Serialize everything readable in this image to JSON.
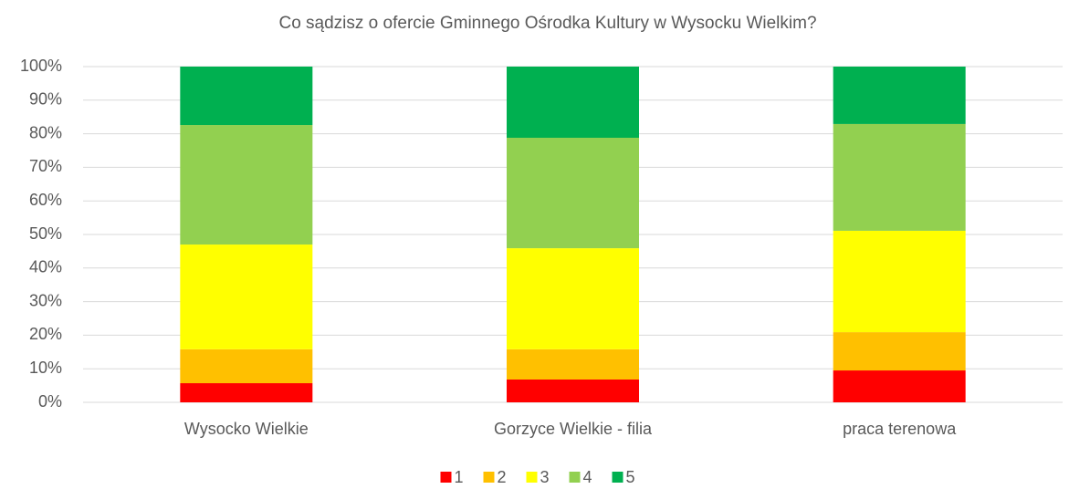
{
  "chart_data": {
    "type": "stacked_bar_100",
    "title": "Co sądzisz o ofercie Gminnego Ośrodka Kultury w Wysocku Wielkim?",
    "categories": [
      "Wysocko Wielkie",
      "Gorzyce Wielkie - filia",
      "praca terenowa"
    ],
    "series": [
      {
        "name": "1",
        "color": "#ff0000",
        "values": [
          5.7,
          6.8,
          9.5
        ]
      },
      {
        "name": "2",
        "color": "#ffc000",
        "values": [
          10.1,
          9.0,
          11.4
        ]
      },
      {
        "name": "3",
        "color": "#ffff00",
        "values": [
          31.2,
          30.1,
          30.2
        ]
      },
      {
        "name": "4",
        "color": "#92d050",
        "values": [
          35.6,
          32.9,
          31.8
        ]
      },
      {
        "name": "5",
        "color": "#00b050",
        "values": [
          17.4,
          21.2,
          17.1
        ]
      }
    ],
    "ylim": [
      0,
      100
    ],
    "yticks": [
      {
        "value": 0,
        "label": "0%"
      },
      {
        "value": 10,
        "label": "10%"
      },
      {
        "value": 20,
        "label": "20%"
      },
      {
        "value": 30,
        "label": "30%"
      },
      {
        "value": 40,
        "label": "40%"
      },
      {
        "value": 50,
        "label": "50%"
      },
      {
        "value": 60,
        "label": "60%"
      },
      {
        "value": 70,
        "label": "70%"
      },
      {
        "value": 80,
        "label": "80%"
      },
      {
        "value": 90,
        "label": "90%"
      },
      {
        "value": 100,
        "label": "100%"
      }
    ],
    "grid": true,
    "legend": "bottom"
  }
}
